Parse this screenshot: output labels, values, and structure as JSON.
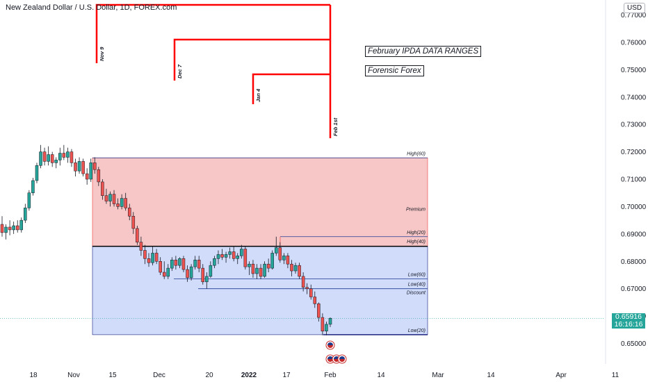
{
  "header": {
    "title": "New Zealand Dollar / U.S. Dollar, 1D, FOREX.com",
    "currency": "USD"
  },
  "annotations": {
    "box1": "February IPDA DATA RANGES",
    "box2": "Forensic Forex"
  },
  "last_price": {
    "value": "0.65916",
    "countdown": "16:16:16",
    "color": "#26a69a"
  },
  "chart_data": {
    "type": "candlestick",
    "instrument": "NZDUSD",
    "timeframe": "1D",
    "ylim": [
      0.6485,
      0.7775
    ],
    "y_ticks": [
      "0.77000",
      "0.76000",
      "0.75000",
      "0.74000",
      "0.73000",
      "0.72000",
      "0.71000",
      "0.70000",
      "0.69000",
      "0.68000",
      "0.67000",
      "0.66000",
      "0.65000"
    ],
    "x_ticks": [
      "18",
      "Nov",
      "15",
      "Dec",
      "20",
      "2022",
      "17",
      "Feb",
      "14",
      "Mar",
      "14",
      "Apr",
      "11"
    ],
    "colors": {
      "up": "#26a69a",
      "down": "#ef5350",
      "wick": "#131722",
      "premium": "#f7c7c7",
      "discount": "#d1dcfb"
    },
    "candles": [
      [
        0.6935,
        0.6965,
        0.689,
        0.6905
      ],
      [
        0.6905,
        0.6935,
        0.688,
        0.6925
      ],
      [
        0.6925,
        0.695,
        0.6895,
        0.6915
      ],
      [
        0.6915,
        0.6945,
        0.69,
        0.693
      ],
      [
        0.693,
        0.695,
        0.6905,
        0.6915
      ],
      [
        0.6915,
        0.696,
        0.6905,
        0.695
      ],
      [
        0.695,
        0.701,
        0.694,
        0.6995
      ],
      [
        0.6995,
        0.706,
        0.6985,
        0.705
      ],
      [
        0.705,
        0.7105,
        0.704,
        0.7095
      ],
      [
        0.7095,
        0.716,
        0.7085,
        0.715
      ],
      [
        0.715,
        0.7225,
        0.714,
        0.72
      ],
      [
        0.72,
        0.7215,
        0.715,
        0.7165
      ],
      [
        0.7165,
        0.722,
        0.715,
        0.719
      ],
      [
        0.719,
        0.72,
        0.7145,
        0.716
      ],
      [
        0.716,
        0.718,
        0.714,
        0.717
      ],
      [
        0.717,
        0.7215,
        0.715,
        0.7195
      ],
      [
        0.7195,
        0.7225,
        0.717,
        0.718
      ],
      [
        0.718,
        0.7215,
        0.716,
        0.72
      ],
      [
        0.72,
        0.721,
        0.7145,
        0.716
      ],
      [
        0.716,
        0.7175,
        0.711,
        0.713
      ],
      [
        0.713,
        0.718,
        0.712,
        0.7165
      ],
      [
        0.7165,
        0.7175,
        0.711,
        0.712
      ],
      [
        0.712,
        0.714,
        0.708,
        0.71
      ],
      [
        0.71,
        0.7175,
        0.709,
        0.716
      ],
      [
        0.716,
        0.718,
        0.712,
        0.7135
      ],
      [
        0.7135,
        0.7145,
        0.7075,
        0.709
      ],
      [
        0.709,
        0.71,
        0.7025,
        0.704
      ],
      [
        0.704,
        0.7065,
        0.701,
        0.702
      ],
      [
        0.702,
        0.7055,
        0.7,
        0.7045
      ],
      [
        0.7045,
        0.706,
        0.7,
        0.701
      ],
      [
        0.701,
        0.703,
        0.699,
        0.7
      ],
      [
        0.7,
        0.7045,
        0.699,
        0.703
      ],
      [
        0.703,
        0.705,
        0.6985,
        0.6995
      ],
      [
        0.6995,
        0.701,
        0.695,
        0.6965
      ],
      [
        0.6965,
        0.698,
        0.69,
        0.692
      ],
      [
        0.692,
        0.693,
        0.686,
        0.687
      ],
      [
        0.687,
        0.689,
        0.682,
        0.684
      ],
      [
        0.684,
        0.686,
        0.679,
        0.681
      ],
      [
        0.681,
        0.683,
        0.678,
        0.6795
      ],
      [
        0.6795,
        0.6855,
        0.6785,
        0.683
      ],
      [
        0.683,
        0.6845,
        0.679,
        0.68
      ],
      [
        0.68,
        0.6815,
        0.675,
        0.676
      ],
      [
        0.676,
        0.68,
        0.6735,
        0.6745
      ],
      [
        0.6745,
        0.679,
        0.6735,
        0.6775
      ],
      [
        0.6775,
        0.6815,
        0.6765,
        0.6805
      ],
      [
        0.6805,
        0.682,
        0.677,
        0.6785
      ],
      [
        0.6785,
        0.6815,
        0.6775,
        0.681
      ],
      [
        0.681,
        0.682,
        0.676,
        0.677
      ],
      [
        0.677,
        0.6785,
        0.6725,
        0.674
      ],
      [
        0.674,
        0.679,
        0.673,
        0.678
      ],
      [
        0.678,
        0.682,
        0.677,
        0.6805
      ],
      [
        0.6805,
        0.682,
        0.676,
        0.6775
      ],
      [
        0.6775,
        0.679,
        0.6715,
        0.6725
      ],
      [
        0.6725,
        0.676,
        0.67,
        0.6745
      ],
      [
        0.6745,
        0.68,
        0.674,
        0.6785
      ],
      [
        0.6785,
        0.682,
        0.6775,
        0.681
      ],
      [
        0.681,
        0.684,
        0.679,
        0.6825
      ],
      [
        0.6825,
        0.6845,
        0.6805,
        0.6815
      ],
      [
        0.6815,
        0.6835,
        0.6795,
        0.6825
      ],
      [
        0.6825,
        0.685,
        0.681,
        0.6835
      ],
      [
        0.6835,
        0.6855,
        0.68,
        0.681
      ],
      [
        0.681,
        0.683,
        0.679,
        0.682
      ],
      [
        0.682,
        0.686,
        0.681,
        0.6845
      ],
      [
        0.6845,
        0.6855,
        0.677,
        0.678
      ],
      [
        0.678,
        0.68,
        0.675,
        0.679
      ],
      [
        0.679,
        0.6805,
        0.674,
        0.6755
      ],
      [
        0.6755,
        0.679,
        0.6735,
        0.6775
      ],
      [
        0.6775,
        0.679,
        0.6735,
        0.6745
      ],
      [
        0.6745,
        0.68,
        0.674,
        0.679
      ],
      [
        0.679,
        0.681,
        0.676,
        0.6775
      ],
      [
        0.6775,
        0.684,
        0.677,
        0.683
      ],
      [
        0.683,
        0.689,
        0.682,
        0.685
      ],
      [
        0.685,
        0.687,
        0.6795,
        0.6805
      ],
      [
        0.6805,
        0.683,
        0.679,
        0.682
      ],
      [
        0.682,
        0.683,
        0.6775,
        0.679
      ],
      [
        0.679,
        0.6805,
        0.6745,
        0.6765
      ],
      [
        0.6765,
        0.6795,
        0.6755,
        0.6785
      ],
      [
        0.6785,
        0.6795,
        0.6735,
        0.6745
      ],
      [
        0.6745,
        0.676,
        0.669,
        0.6705
      ],
      [
        0.6705,
        0.672,
        0.668,
        0.67
      ],
      [
        0.67,
        0.6715,
        0.666,
        0.667
      ],
      [
        0.667,
        0.669,
        0.663,
        0.6645
      ],
      [
        0.6645,
        0.665,
        0.658,
        0.6595
      ],
      [
        0.6595,
        0.661,
        0.653,
        0.6545
      ],
      [
        0.6545,
        0.658,
        0.653,
        0.657
      ],
      [
        0.657,
        0.6595,
        0.656,
        0.6592
      ]
    ],
    "zones": {
      "premium": {
        "from": 0.6855,
        "to": 0.7178,
        "label": "Premium"
      },
      "discount": {
        "from": 0.6532,
        "to": 0.6855,
        "label": "Discount"
      }
    },
    "levels": [
      {
        "label": "High(60)",
        "price": 0.7178
      },
      {
        "label": "High(20)",
        "price": 0.689
      },
      {
        "label": "High(40)",
        "price": 0.6857
      },
      {
        "label": "Low(60)",
        "price": 0.6736
      },
      {
        "label": "Low(40)",
        "price": 0.67
      },
      {
        "label": "Discount",
        "price": 0.67
      },
      {
        "label": "Low(20)",
        "price": 0.6532
      }
    ],
    "date_markers": [
      {
        "label": "Nov 9",
        "color": "#ff0000"
      },
      {
        "label": "Dec 7",
        "color": "#ff0000"
      },
      {
        "label": "Jan 4",
        "color": "#ff0000"
      },
      {
        "label": "Feb 1st",
        "color": "#ff0000"
      }
    ],
    "last_price": 0.65916
  }
}
